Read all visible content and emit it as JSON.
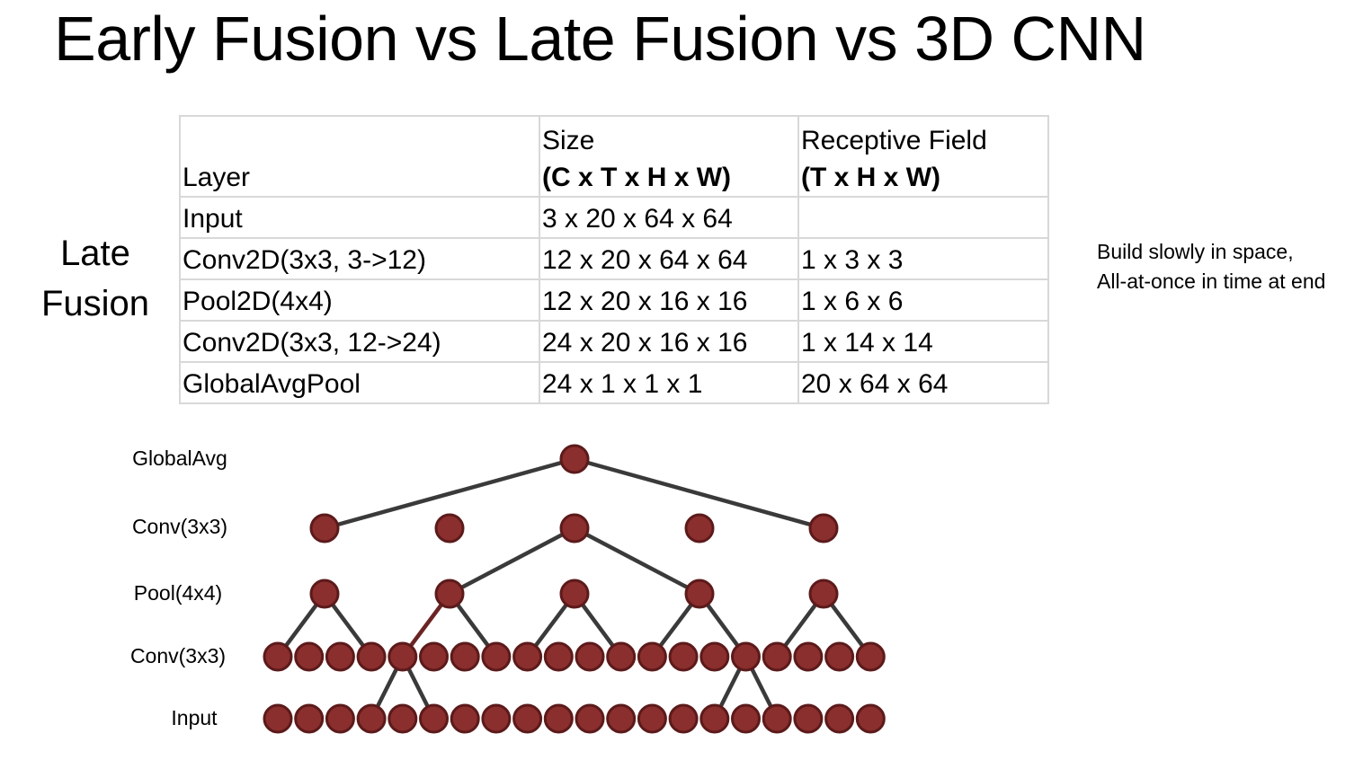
{
  "title": "Early Fusion vs Late Fusion vs 3D CNN",
  "side_label": [
    "Late",
    "Fusion"
  ],
  "table": {
    "header": {
      "layer": "Layer",
      "size_top": "Size",
      "size_bold": "(C x T x H x W)",
      "rf_top": "Receptive Field",
      "rf_bold": "(T x H x W)"
    },
    "rows": [
      {
        "layer": "Input",
        "size": "3 x 20 x 64 x 64",
        "rf": ""
      },
      {
        "layer": "Conv2D(3x3, 3->12)",
        "size": "12 x 20 x 64 x 64",
        "rf": "1 x 3 x 3"
      },
      {
        "layer": "Pool2D(4x4)",
        "size": "12 x 20 x 16 x 16",
        "rf": "1 x 6 x 6"
      },
      {
        "layer": "Conv2D(3x3, 12->24)",
        "size": "24 x 20 x 16 x 16",
        "rf": "1 x 14 x 14"
      },
      {
        "layer": "GlobalAvgPool",
        "size": "24 x 1 x 1 x 1",
        "rf": "20 x 64 x 64"
      }
    ]
  },
  "note": [
    "Build slowly in space,",
    "All-at-once in time at end"
  ],
  "diagram": {
    "row_labels": [
      "GlobalAvg",
      "Conv(3x3)",
      "Pool(4x4)",
      "Conv(3x3)",
      "Input"
    ],
    "node_counts": [
      1,
      5,
      5,
      20,
      20
    ],
    "colors": {
      "node_fill": "#8b2e2e",
      "node_stroke": "#5c1a1a",
      "edge": "#3a3a3a",
      "edge_highlight": "#6b2424"
    }
  }
}
